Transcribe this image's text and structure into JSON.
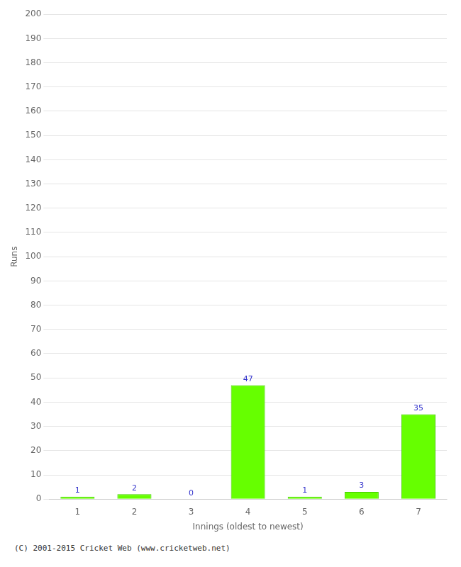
{
  "chart_data": {
    "type": "bar",
    "categories": [
      "1",
      "2",
      "3",
      "4",
      "5",
      "6",
      "7"
    ],
    "values": [
      1,
      2,
      0,
      47,
      1,
      3,
      35
    ],
    "color": "#66ff00",
    "xlabel": "Innings (oldest to newest)",
    "ylabel": "Runs",
    "ylim": [
      0,
      200
    ],
    "yticks": [
      0,
      10,
      20,
      30,
      40,
      50,
      60,
      70,
      80,
      90,
      100,
      110,
      120,
      130,
      140,
      150,
      160,
      170,
      180,
      190,
      200
    ],
    "grid": true,
    "data_labels": true,
    "annotations": [
      "(C) 2001-2015 Cricket Web (www.cricketweb.net)"
    ]
  }
}
